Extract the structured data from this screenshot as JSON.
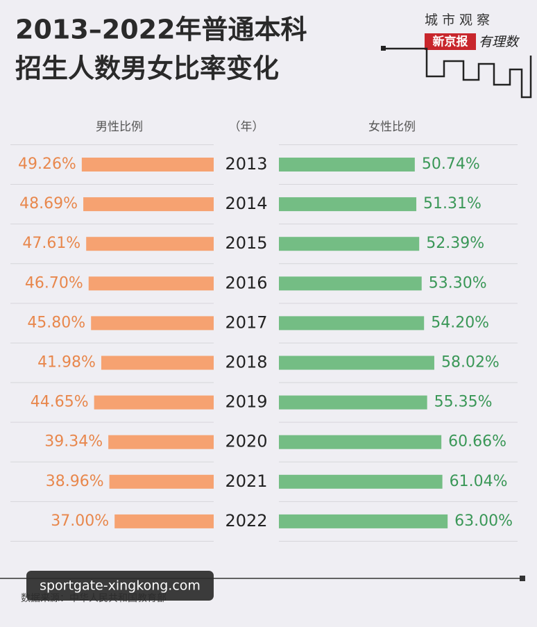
{
  "title_lines": [
    "2013–2022年普通本科",
    "招生人数男女比率变化"
  ],
  "logo": {
    "line1": "城市观察",
    "brand": "新京报",
    "column": "有理数"
  },
  "chart_data": {
    "type": "butterfly",
    "category_header": "（年）",
    "categories": [
      "2013",
      "2014",
      "2015",
      "2016",
      "2017",
      "2018",
      "2019",
      "2020",
      "2021",
      "2022"
    ],
    "series": [
      {
        "name": "男性比例",
        "color": "#f6a271",
        "label_color": "#e8874c",
        "values": [
          49.26,
          48.69,
          47.61,
          46.7,
          45.8,
          41.98,
          44.65,
          39.34,
          38.96,
          37.0
        ],
        "value_labels": [
          "49.26%",
          "48.69%",
          "47.61%",
          "46.70%",
          "45.80%",
          "41.98%",
          "44.65%",
          "39.34%",
          "38.96%",
          "37.00%"
        ]
      },
      {
        "name": "女性比例",
        "color": "#74bd84",
        "label_color": "#3a9757",
        "values": [
          50.74,
          51.31,
          52.39,
          53.3,
          54.2,
          58.02,
          55.35,
          60.66,
          61.04,
          63.0
        ],
        "value_labels": [
          "50.74%",
          "51.31%",
          "52.39%",
          "53.30%",
          "54.20%",
          "58.02%",
          "55.35%",
          "60.66%",
          "61.04%",
          "63.00%"
        ]
      }
    ]
  },
  "source": "数据来源：中华人民共和国教育部",
  "watermark": "sportgate-xingkong.com"
}
